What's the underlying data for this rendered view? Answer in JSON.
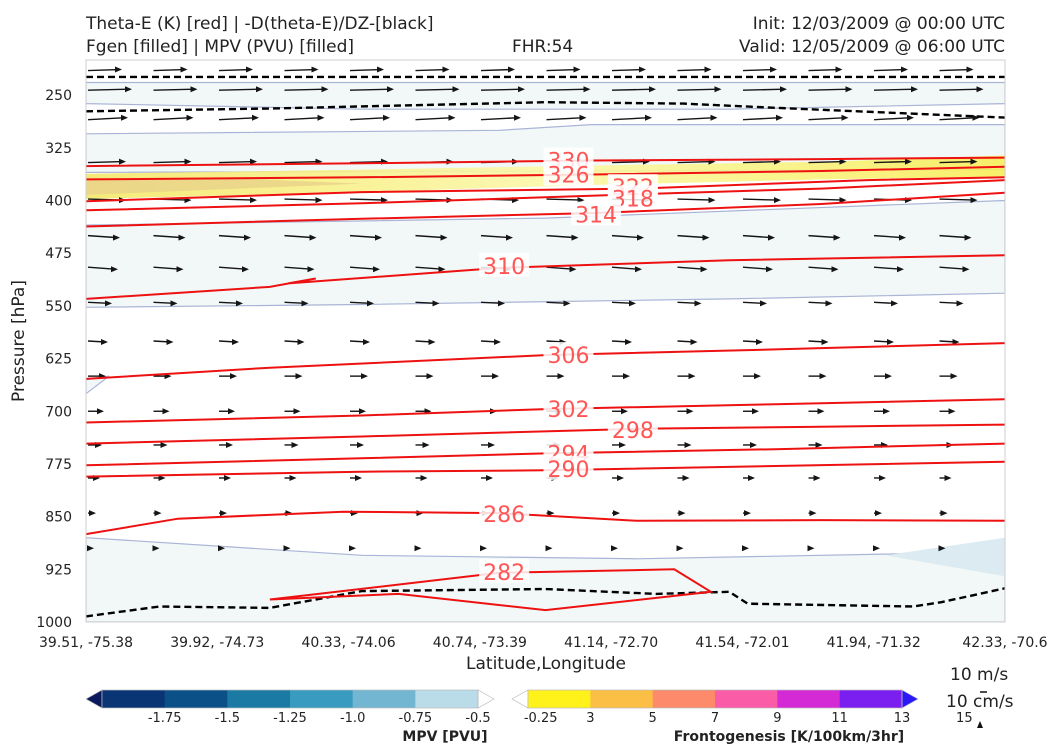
{
  "header": {
    "title_line1": "Theta-E (K) [red] | -D(theta-E)/DZ-[black]",
    "title_line2": "Fgen [filled] | MPV (PVU) [filled]",
    "fhr": "FHR:54",
    "init": "Init: 12/03/2009 @ 00:00 UTC",
    "valid": "Valid: 12/05/2009 @ 06:00 UTC"
  },
  "chart_data": {
    "type": "cross-section",
    "xlabel": "Latitude,Longitude",
    "ylabel": "Pressure [hPa]",
    "x_ticks": [
      "39.51, -75.38",
      "39.92, -74.73",
      "40.33, -74.06",
      "40.74, -73.39",
      "41.14, -72.70",
      "41.54, -72.01",
      "41.94, -71.32",
      "42.33, -70.6"
    ],
    "y_ticks": [
      250,
      325,
      400,
      475,
      550,
      625,
      700,
      775,
      850,
      925,
      1000
    ],
    "ylim": [
      1000,
      200
    ],
    "y_scale": "linear, inverted",
    "theta_e_contours": [
      {
        "value": 282,
        "points": [
          [
            0.2,
            968
          ],
          [
            0.45,
            930
          ],
          [
            0.64,
            925
          ],
          [
            0.68,
            957
          ],
          [
            0.5,
            983
          ],
          [
            0.34,
            960
          ],
          [
            0.2,
            968
          ]
        ]
      },
      {
        "value": 286,
        "points": [
          [
            0,
            875
          ],
          [
            0.1,
            853
          ],
          [
            0.28,
            843
          ],
          [
            0.45,
            845
          ],
          [
            0.6,
            856
          ],
          [
            0.8,
            855
          ],
          [
            1,
            856
          ]
        ]
      },
      {
        "value": 290,
        "points": [
          [
            0,
            793
          ],
          [
            0.3,
            786
          ],
          [
            0.5,
            784
          ],
          [
            0.75,
            778
          ],
          [
            1,
            772
          ]
        ]
      },
      {
        "value": 294,
        "points": [
          [
            0,
            777
          ],
          [
            0.3,
            767
          ],
          [
            0.5,
            760
          ],
          [
            0.75,
            754
          ],
          [
            1,
            746
          ]
        ]
      },
      {
        "value": 298,
        "points": [
          [
            0,
            746
          ],
          [
            0.3,
            736
          ],
          [
            0.6,
            725
          ],
          [
            0.8,
            722
          ],
          [
            1,
            719
          ]
        ]
      },
      {
        "value": 302,
        "points": [
          [
            0,
            716
          ],
          [
            0.3,
            706
          ],
          [
            0.5,
            697
          ],
          [
            0.75,
            690
          ],
          [
            1,
            683
          ]
        ]
      },
      {
        "value": 306,
        "points": [
          [
            0,
            654
          ],
          [
            0.2,
            638
          ],
          [
            0.5,
            620
          ],
          [
            0.75,
            612
          ],
          [
            1,
            603
          ]
        ]
      },
      {
        "value": 310,
        "points": [
          [
            0,
            540
          ],
          [
            0.2,
            523
          ],
          [
            0.25,
            511
          ],
          [
            0.22,
            518
          ],
          [
            0.45,
            496
          ],
          [
            0.7,
            485
          ],
          [
            1,
            478
          ]
        ]
      },
      {
        "value": 314,
        "points": [
          [
            0,
            437
          ],
          [
            0.3,
            426
          ],
          [
            0.55,
            418
          ],
          [
            0.8,
            405
          ],
          [
            1,
            389
          ]
        ]
      },
      {
        "value": 318,
        "points": [
          [
            0,
            414
          ],
          [
            0.3,
            404
          ],
          [
            0.6,
            391
          ],
          [
            0.8,
            383
          ],
          [
            1,
            371
          ]
        ]
      },
      {
        "value": 322,
        "points": [
          [
            0,
            401
          ],
          [
            0.3,
            388
          ],
          [
            0.6,
            383
          ],
          [
            0.85,
            371
          ],
          [
            1,
            367
          ]
        ]
      },
      {
        "value": 326,
        "points": [
          [
            0,
            370
          ],
          [
            0.3,
            367
          ],
          [
            0.55,
            363
          ],
          [
            0.8,
            358
          ],
          [
            1,
            352
          ]
        ]
      },
      {
        "value": 330,
        "points": [
          [
            0,
            351
          ],
          [
            0.3,
            347
          ],
          [
            0.55,
            343
          ],
          [
            0.8,
            341
          ],
          [
            1,
            339
          ]
        ]
      }
    ],
    "theta_e_label_values": [
      330,
      326,
      322,
      318,
      314,
      310,
      306,
      302,
      298,
      294,
      290,
      286,
      282
    ],
    "dthetae_dz_zero_contours": [
      [
        [
          0,
          224
        ],
        [
          1,
          224
        ]
      ],
      [
        [
          0,
          273
        ],
        [
          0.2,
          269
        ],
        [
          0.5,
          260
        ],
        [
          0.65,
          262
        ],
        [
          0.75,
          268
        ],
        [
          1,
          282
        ]
      ],
      [
        [
          0,
          992
        ],
        [
          0.08,
          978
        ],
        [
          0.2,
          980
        ],
        [
          0.3,
          956
        ],
        [
          0.5,
          953
        ],
        [
          0.62,
          960
        ],
        [
          0.7,
          957
        ],
        [
          0.72,
          974
        ],
        [
          0.9,
          978
        ],
        [
          0.93,
          972
        ],
        [
          1,
          952
        ]
      ]
    ],
    "mpv_colorbar": {
      "title": "MPV [PVU]",
      "ticks": [
        "-1.75",
        "-1.5",
        "-1.25",
        "-1.0",
        "-0.75",
        "-0.5",
        "-0.25"
      ],
      "colors": [
        "#0b1a5c",
        "#0a3575",
        "#0b5188",
        "#1b7aa3",
        "#3a9bc0",
        "#73b6d2",
        "#b9dce8",
        "#ffffff"
      ]
    },
    "fgen_colorbar": {
      "title": "Frontogenesis [K/100km/3hr]",
      "ticks": [
        "3",
        "5",
        "7",
        "9",
        "11",
        "13",
        "15"
      ],
      "colors": [
        "#ffffff",
        "#fff21a",
        "#fcbf45",
        "#fd8a6a",
        "#fb5ca8",
        "#d42ad6",
        "#7b1ef0",
        "#2b18f7"
      ]
    },
    "wind_reference": {
      "label1": "10 m/s",
      "label2": "10 cm/s"
    }
  }
}
